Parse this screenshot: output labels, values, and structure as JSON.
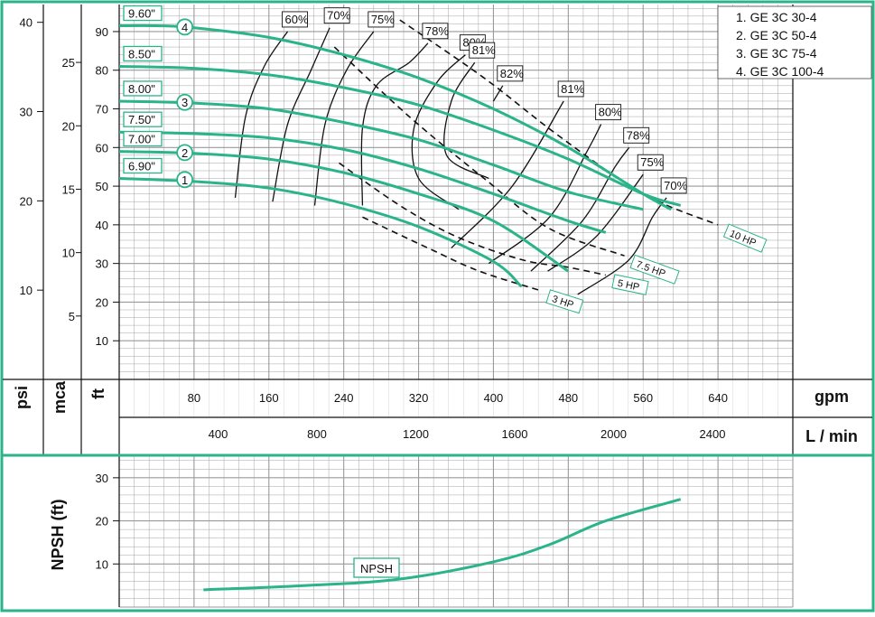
{
  "colors": {
    "frame": "#2bb38a",
    "curve": "#2bb38a",
    "grid": "#9a9a9a",
    "ink": "#111111",
    "background": "#ffffff"
  },
  "legend": {
    "items": [
      "1. GE 3C 30-4",
      "2. GE 3C 50-4",
      "3. GE 3C 75-4",
      "4. GE 3C 100-4"
    ]
  },
  "axes": {
    "psi_label": "psi",
    "mca_label": "mca",
    "ft_label": "ft",
    "gpm_label": "gpm",
    "lmin_label": "L / min",
    "npsh_label": "NPSH (ft)"
  },
  "chart_data": [
    {
      "type": "line",
      "title": "",
      "x_unit": "gpm",
      "xlim": [
        0,
        720
      ],
      "xticks_gpm": [
        80,
        160,
        240,
        320,
        400,
        480,
        560,
        640
      ],
      "xticks_lmin": [
        400,
        800,
        1200,
        1600,
        2000,
        2400
      ],
      "y_unit": "ft",
      "ylim": [
        0,
        97
      ],
      "yticks_ft": [
        10,
        20,
        30,
        40,
        50,
        60,
        70,
        80,
        90
      ],
      "yticks_psi": [
        10,
        20,
        30,
        40
      ],
      "yticks_mca": [
        5,
        10,
        15,
        20,
        25
      ],
      "impeller_curves": [
        {
          "label": "9.60\"",
          "marker": "4",
          "x": [
            0,
            40,
            80,
            160,
            240,
            320,
            400,
            480,
            560,
            590
          ],
          "y": [
            91.5,
            91.5,
            91,
            88.5,
            84,
            78,
            70,
            60,
            48,
            44
          ]
        },
        {
          "label": "8.50\"",
          "x": [
            0,
            80,
            160,
            240,
            320,
            400,
            480,
            560,
            600
          ],
          "y": [
            81,
            80.5,
            78.8,
            75.5,
            71,
            64.5,
            57,
            48,
            45
          ]
        },
        {
          "label": "8.00\"",
          "marker": "3",
          "x": [
            0,
            80,
            160,
            240,
            320,
            400,
            480,
            560
          ],
          "y": [
            72,
            71.5,
            70,
            66.5,
            62,
            55.5,
            48.5,
            44
          ]
        },
        {
          "label": "7.50\"",
          "x": [
            0,
            80,
            160,
            240,
            320,
            400,
            480,
            520
          ],
          "y": [
            64,
            63.6,
            62.5,
            59.5,
            54.5,
            48,
            41,
            38
          ]
        },
        {
          "label": "7.00\"",
          "marker": "2",
          "x": [
            0,
            80,
            160,
            240,
            320,
            400,
            480
          ],
          "y": [
            59,
            58.5,
            57,
            53.5,
            48,
            41,
            28
          ]
        },
        {
          "label": "6.90\"",
          "marker": "1",
          "x": [
            0,
            80,
            160,
            240,
            320,
            400,
            430
          ],
          "y": [
            52,
            51.2,
            49.5,
            45.5,
            39.5,
            30.5,
            24
          ]
        }
      ],
      "efficiency_curves": [
        {
          "label": "60%",
          "x": [
            124,
            135,
            155,
            180
          ],
          "y": [
            47,
            68,
            81,
            90
          ]
        },
        {
          "label": "70%",
          "x": [
            164,
            180,
            205,
            225
          ],
          "y": [
            46,
            66,
            80,
            91
          ]
        },
        {
          "label": "75%",
          "x": [
            209,
            220,
            243,
            272
          ],
          "y": [
            45,
            66,
            80,
            90
          ]
        },
        {
          "label": "78%",
          "x": [
            260,
            260,
            275,
            310,
            330
          ],
          "y": [
            45,
            65,
            76,
            82,
            87
          ]
        },
        {
          "label": "80%",
          "x": [
            363,
            320,
            315,
            340,
            370
          ],
          "y": [
            44,
            52,
            65,
            77,
            84
          ]
        },
        {
          "label": "81%",
          "x": [
            395,
            350,
            355,
            380
          ],
          "y": [
            52,
            58,
            72,
            82
          ]
        },
        {
          "label": "82%",
          "x": [
            400,
            410
          ],
          "y": [
            72,
            76
          ]
        },
        {
          "label": "81%",
          "x": [
            355,
            420,
            475
          ],
          "y": [
            34,
            50,
            72
          ]
        },
        {
          "label": "80%",
          "x": [
            395,
            460,
            500,
            515
          ],
          "y": [
            30,
            42,
            59,
            66
          ]
        },
        {
          "label": "78%",
          "x": [
            440,
            495,
            530,
            545
          ],
          "y": [
            28,
            41,
            55,
            60
          ]
        },
        {
          "label": "75%",
          "x": [
            458,
            510,
            560
          ],
          "y": [
            28,
            37,
            53
          ]
        },
        {
          "label": "70%",
          "x": [
            490,
            545,
            570,
            585
          ],
          "y": [
            22,
            31,
            42,
            47
          ]
        }
      ],
      "power_curves": [
        {
          "label": "3 HP",
          "x": [
            260,
            330,
            385,
            450
          ],
          "y": [
            42,
            34,
            28,
            23
          ]
        },
        {
          "label": "5 HP",
          "x": [
            235,
            300,
            360,
            430,
            480,
            520
          ],
          "y": [
            56,
            45,
            37,
            31,
            29,
            27
          ]
        },
        {
          "label": "7.5 HP",
          "x": [
            230,
            310,
            390,
            460,
            540
          ],
          "y": [
            86,
            68,
            52,
            39,
            32
          ]
        },
        {
          "label": "10 HP",
          "x": [
            300,
            390,
            470,
            560,
            640
          ],
          "y": [
            93,
            78,
            63,
            48,
            40
          ]
        }
      ]
    },
    {
      "type": "line",
      "title": "",
      "x_unit": "gpm",
      "xlim": [
        0,
        720
      ],
      "y_unit": "ft",
      "ylim": [
        0,
        35
      ],
      "yticks_ft": [
        10,
        20,
        30
      ],
      "series": [
        {
          "name": "NPSH",
          "x": [
            90,
            200,
            300,
            400,
            460,
            520,
            600
          ],
          "y": [
            4,
            5,
            6.5,
            10.5,
            14.5,
            20,
            25
          ]
        }
      ]
    }
  ]
}
